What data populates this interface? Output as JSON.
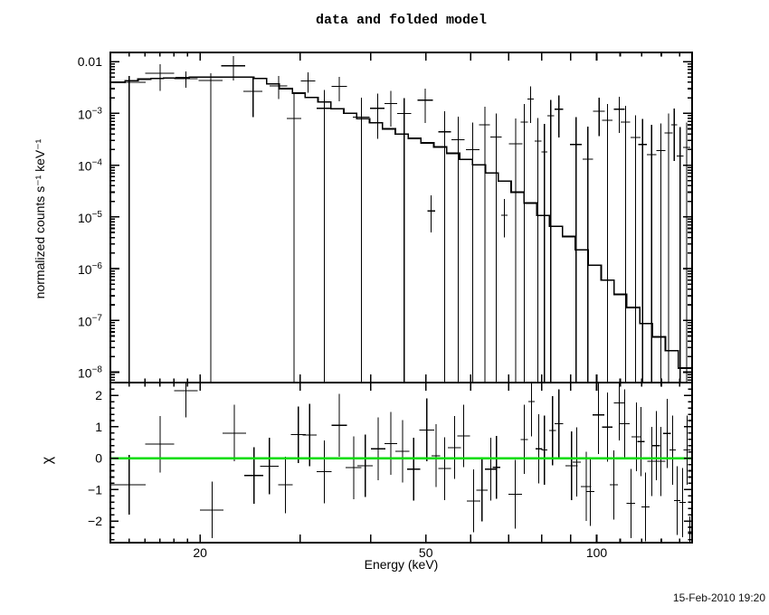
{
  "title": "data and folded model",
  "timestamp": "15-Feb-2010 19:20",
  "chart_data": {
    "type": "scatter",
    "title": "data and folded model",
    "grid": false,
    "legend": false,
    "x_axis": {
      "label": "Energy (keV)",
      "scale": "log",
      "range_kev": [
        13.9,
        147.3
      ],
      "major_ticks": [
        20,
        30,
        40,
        50,
        60,
        70,
        80,
        90,
        100
      ],
      "minor_ticks": [
        15,
        16,
        17,
        18,
        19,
        110,
        120,
        130,
        140
      ],
      "tick_labels": [
        {
          "value": 20,
          "label": "20"
        },
        {
          "value": 50,
          "label": "50"
        },
        {
          "value": 100,
          "label": "100"
        }
      ]
    },
    "panels": [
      {
        "name": "spectrum",
        "ylabel": "normalized counts s⁻¹ keV⁻¹",
        "yscale": "log",
        "ylim": [
          6.3e-09,
          0.015
        ],
        "tick_labels": [
          {
            "v": 0.01,
            "label": "0.01"
          },
          {
            "v": 0.001,
            "base": "10",
            "exp": "−3"
          },
          {
            "v": 0.0001,
            "base": "10",
            "exp": "−4"
          },
          {
            "v": 1e-05,
            "base": "10",
            "exp": "−5"
          },
          {
            "v": 1e-06,
            "base": "10",
            "exp": "−6"
          },
          {
            "v": 1e-07,
            "base": "10",
            "exp": "−7"
          },
          {
            "v": 1e-08,
            "base": "10",
            "exp": "−8"
          }
        ],
        "model_step": {
          "edges_kev": [
            13.9,
            14.75,
            15.54,
            16.37,
            17.25,
            18.17,
            19.15,
            20.17,
            21.26,
            22.4,
            23.6,
            24.86,
            26.2,
            27.6,
            29.08,
            30.64,
            32.28,
            34.01,
            35.84,
            37.76,
            39.78,
            41.92,
            44.16,
            46.53,
            49.02,
            51.65,
            54.42,
            57.34,
            60.41,
            63.65,
            67.06,
            70.65,
            74.44,
            78.43,
            82.63,
            87.06,
            91.72,
            96.64,
            101.82,
            107.27,
            113.02,
            119.08,
            125.46,
            132.18,
            139.26,
            147.3
          ],
          "values": [
            0.004,
            0.0043,
            0.0046,
            0.0047,
            0.0048,
            0.0049,
            0.005,
            0.005,
            0.005,
            0.005,
            0.005,
            0.0047,
            0.0037,
            0.003,
            0.00245,
            0.00204,
            0.00166,
            0.00123,
            0.001,
            0.00079,
            0.00066,
            0.0005,
            0.0004,
            0.00033,
            0.00027,
            0.000224,
            0.00017,
            0.000129,
            0.000102,
            7.1e-05,
            4.9e-05,
            3e-05,
            1.86e-05,
            1.07e-05,
            6.6e-06,
            4.2e-06,
            2.3e-06,
            1.17e-06,
            6e-07,
            3.2e-07,
            1.78e-07,
            8.7e-08,
            4.8e-08,
            2.6e-08,
            1.2e-08
          ]
        },
        "points": [
          {
            "e": 15.0,
            "w": 1.05,
            "y": 0.004,
            "hi": 0.0053,
            "lo": 0
          },
          {
            "e": 17.0,
            "w": 1.0,
            "y": 0.0059,
            "hi": 0.0089,
            "lo": 0.0027
          },
          {
            "e": 18.9,
            "w": 0.9,
            "y": 0.0047,
            "hi": 0.0065,
            "lo": 0.0031
          },
          {
            "e": 20.9,
            "w": 1.0,
            "y": 0.0043,
            "hi": 0.006,
            "lo": 0
          },
          {
            "e": 22.9,
            "w": 1.1,
            "y": 0.0083,
            "hi": 0.0128,
            "lo": 0.0043
          },
          {
            "e": 24.8,
            "w": 0.95,
            "y": 0.00265,
            "hi": 0.005,
            "lo": 0.00085
          },
          {
            "e": 27.5,
            "w": 1.0,
            "y": 0.0034,
            "hi": 0.0053,
            "lo": 0.0019
          },
          {
            "e": 29.3,
            "w": 0.85,
            "y": 0.0008,
            "hi": 0.0024,
            "lo": 0
          },
          {
            "e": 31.0,
            "w": 0.9,
            "y": 0.0042,
            "hi": 0.0062,
            "lo": 0.0025
          },
          {
            "e": 33.1,
            "w": 1.0,
            "y": 0.00125,
            "hi": 0.0028,
            "lo": 0
          },
          {
            "e": 35.2,
            "w": 1.1,
            "y": 0.0033,
            "hi": 0.0051,
            "lo": 0.0017
          },
          {
            "e": 38.5,
            "w": 1.3,
            "y": 0.00084,
            "hi": 0.002,
            "lo": 0
          },
          {
            "e": 41.1,
            "w": 1.2,
            "y": 0.00125,
            "hi": 0.0024,
            "lo": 0.00032
          },
          {
            "e": 43.4,
            "w": 1.1,
            "y": 0.00155,
            "hi": 0.0027,
            "lo": 0.00055
          },
          {
            "e": 45.8,
            "w": 1.3,
            "y": 0.00099,
            "hi": 0.00195,
            "lo": 0
          },
          {
            "e": 49.9,
            "w": 1.6,
            "y": 0.0018,
            "hi": 0.003,
            "lo": 0.00065
          },
          {
            "e": 51.1,
            "w": 0.8,
            "y": 1.3e-05,
            "hi": 2.6e-05,
            "lo": 5e-06
          },
          {
            "e": 54.0,
            "w": 1.4,
            "y": 0.00044,
            "hi": 0.0011,
            "lo": 0
          },
          {
            "e": 57.0,
            "w": 1.5,
            "y": 0.00031,
            "hi": 0.00086,
            "lo": 0
          },
          {
            "e": 60.5,
            "w": 1.7,
            "y": 0.0002,
            "hi": 0.00066,
            "lo": 0
          },
          {
            "e": 63.5,
            "w": 1.4,
            "y": 0.0006,
            "hi": 0.00135,
            "lo": 0
          },
          {
            "e": 66.5,
            "w": 1.5,
            "y": 0.00035,
            "hi": 0.001,
            "lo": 0
          },
          {
            "e": 68.8,
            "w": 0.9,
            "y": 1.08e-05,
            "hi": 2.2e-05,
            "lo": 4e-06
          },
          {
            "e": 72.0,
            "w": 2.0,
            "y": 0.00026,
            "hi": 0.0008,
            "lo": 0
          },
          {
            "e": 74.6,
            "w": 1.1,
            "y": 0.00068,
            "hi": 0.0015,
            "lo": 0
          },
          {
            "e": 76.5,
            "w": 1.0,
            "y": 0.0019,
            "hi": 0.0033,
            "lo": 0.00065
          },
          {
            "e": 78.8,
            "w": 1.1,
            "y": 0.00029,
            "hi": 0.00082,
            "lo": 0
          },
          {
            "e": 80.9,
            "w": 1.0,
            "y": 0.00018,
            "hi": 0.00062,
            "lo": 0
          },
          {
            "e": 83.0,
            "w": 1.1,
            "y": 0.0009,
            "hi": 0.0018,
            "lo": 0
          },
          {
            "e": 85.8,
            "w": 1.5,
            "y": 0.0012,
            "hi": 0.0022,
            "lo": 0.00034
          },
          {
            "e": 92.0,
            "w": 2.2,
            "y": 0.00025,
            "hi": 0.00085,
            "lo": 0
          },
          {
            "e": 96.5,
            "w": 2.0,
            "y": 0.00013,
            "hi": 0.00055,
            "lo": 0
          },
          {
            "e": 101.0,
            "w": 2.4,
            "y": 0.0011,
            "hi": 0.002,
            "lo": 0.00036
          },
          {
            "e": 104.5,
            "w": 2.2,
            "y": 0.00074,
            "hi": 0.0015,
            "lo": 0
          },
          {
            "e": 109.6,
            "w": 2.4,
            "y": 0.0012,
            "hi": 0.0021,
            "lo": 0.00042
          },
          {
            "e": 112.4,
            "w": 2.2,
            "y": 0.00068,
            "hi": 0.0014,
            "lo": 0
          },
          {
            "e": 117.1,
            "w": 2.3,
            "y": 0.00034,
            "hi": 0.00092,
            "lo": 0
          },
          {
            "e": 120.5,
            "w": 2.2,
            "y": 0.00025,
            "hi": 0.00078,
            "lo": 0
          },
          {
            "e": 125.0,
            "w": 2.3,
            "y": 0.00016,
            "hi": 0.0006,
            "lo": 0
          },
          {
            "e": 129.8,
            "w": 2.3,
            "y": 0.00019,
            "hi": 0.00064,
            "lo": 0
          },
          {
            "e": 133.9,
            "w": 2.1,
            "y": 0.00042,
            "hi": 0.001,
            "lo": 0
          },
          {
            "e": 137.0,
            "w": 1.7,
            "y": 0.0006,
            "hi": 0.00125,
            "lo": 0.00012
          },
          {
            "e": 140.3,
            "w": 1.9,
            "y": 0.00015,
            "hi": 0.00054,
            "lo": 0
          },
          {
            "e": 144.0,
            "w": 2.1,
            "y": 0.00022,
            "hi": 0.00066,
            "lo": 0
          }
        ]
      },
      {
        "name": "residuals",
        "ylabel": "χ",
        "yscale": "linear",
        "ylim": [
          -2.69,
          2.41
        ],
        "zero_line_color": "#00dd00",
        "tick_labels": [
          {
            "v": 2,
            "label": "2"
          },
          {
            "v": 1,
            "label": "1"
          },
          {
            "v": 0,
            "label": "0"
          },
          {
            "v": -1,
            "label": "−1"
          },
          {
            "v": -2,
            "label": "−2"
          }
        ],
        "points": [
          {
            "e": 15.0,
            "w": 1.05,
            "chi": -0.85,
            "err": 0.95
          },
          {
            "e": 17.0,
            "w": 1.0,
            "chi": 0.45,
            "err": 0.9
          },
          {
            "e": 18.9,
            "w": 0.9,
            "chi": 2.15,
            "err": 0.85
          },
          {
            "e": 21.0,
            "w": 1.0,
            "chi": -1.65,
            "err": 0.9
          },
          {
            "e": 23.0,
            "w": 1.1,
            "chi": 0.8,
            "err": 0.9
          },
          {
            "e": 24.9,
            "w": 0.95,
            "chi": -0.55,
            "err": 0.9
          },
          {
            "e": 26.5,
            "w": 1.0,
            "chi": -0.25,
            "err": 0.9
          },
          {
            "e": 28.3,
            "w": 0.85,
            "chi": -0.85,
            "err": 0.9
          },
          {
            "e": 29.8,
            "w": 0.9,
            "chi": 0.75,
            "err": 0.9
          },
          {
            "e": 31.2,
            "w": 0.9,
            "chi": 0.74,
            "err": 1.0
          },
          {
            "e": 33.1,
            "w": 1.0,
            "chi": -0.43,
            "err": 1.0
          },
          {
            "e": 35.2,
            "w": 1.1,
            "chi": 1.05,
            "err": 1.0
          },
          {
            "e": 37.3,
            "w": 1.2,
            "chi": -0.3,
            "err": 1.0
          },
          {
            "e": 39.1,
            "w": 1.2,
            "chi": -0.24,
            "err": 1.0
          },
          {
            "e": 41.2,
            "w": 1.2,
            "chi": 0.3,
            "err": 1.0
          },
          {
            "e": 43.4,
            "w": 1.1,
            "chi": 0.47,
            "err": 1.0
          },
          {
            "e": 45.5,
            "w": 1.3,
            "chi": 0.22,
            "err": 1.0
          },
          {
            "e": 47.6,
            "w": 1.3,
            "chi": -0.35,
            "err": 1.0
          },
          {
            "e": 50.2,
            "w": 1.5,
            "chi": 0.9,
            "err": 1.0
          },
          {
            "e": 52.1,
            "w": 0.9,
            "chi": 0.08,
            "err": 1.0
          },
          {
            "e": 54.0,
            "w": 1.4,
            "chi": -0.33,
            "err": 1.0
          },
          {
            "e": 56.2,
            "w": 1.5,
            "chi": 0.34,
            "err": 1.0
          },
          {
            "e": 58.3,
            "w": 1.5,
            "chi": 0.71,
            "err": 1.0
          },
          {
            "e": 60.7,
            "w": 1.7,
            "chi": -1.36,
            "err": 1.0
          },
          {
            "e": 62.8,
            "w": 1.4,
            "chi": -1.02,
            "err": 1.0
          },
          {
            "e": 65.1,
            "w": 1.5,
            "chi": -0.35,
            "err": 1.0
          },
          {
            "e": 66.6,
            "w": 1.0,
            "chi": -0.29,
            "err": 1.0
          },
          {
            "e": 71.9,
            "w": 2.0,
            "chi": -1.15,
            "err": 1.1
          },
          {
            "e": 74.6,
            "w": 1.1,
            "chi": 0.6,
            "err": 1.1
          },
          {
            "e": 76.8,
            "w": 1.0,
            "chi": 1.8,
            "err": 1.1
          },
          {
            "e": 79.1,
            "w": 1.1,
            "chi": 0.3,
            "err": 1.1
          },
          {
            "e": 80.9,
            "w": 1.0,
            "chi": 0.26,
            "err": 1.1
          },
          {
            "e": 83.6,
            "w": 1.1,
            "chi": 0.88,
            "err": 1.1
          },
          {
            "e": 85.8,
            "w": 1.5,
            "chi": 1.1,
            "err": 1.1
          },
          {
            "e": 90.3,
            "w": 2.2,
            "chi": -0.24,
            "err": 1.1
          },
          {
            "e": 92.3,
            "w": 1.5,
            "chi": -0.12,
            "err": 1.1
          },
          {
            "e": 95.8,
            "w": 2.0,
            "chi": -0.9,
            "err": 1.1
          },
          {
            "e": 97.5,
            "w": 1.5,
            "chi": -1.06,
            "err": 1.1
          },
          {
            "e": 100.7,
            "w": 2.4,
            "chi": 1.38,
            "err": 1.25
          },
          {
            "e": 104.5,
            "w": 2.2,
            "chi": 0.99,
            "err": 1.1
          },
          {
            "e": 107.2,
            "w": 1.8,
            "chi": -0.85,
            "err": 1.1
          },
          {
            "e": 109.6,
            "w": 2.4,
            "chi": 1.76,
            "err": 1.2
          },
          {
            "e": 112.1,
            "w": 2.2,
            "chi": 1.1,
            "err": 1.1
          },
          {
            "e": 114.9,
            "w": 2.0,
            "chi": -1.44,
            "err": 1.1
          },
          {
            "e": 117.5,
            "w": 2.3,
            "chi": 0.68,
            "err": 1.1
          },
          {
            "e": 119.7,
            "w": 1.8,
            "chi": 0.53,
            "err": 1.1
          },
          {
            "e": 121.9,
            "w": 2.0,
            "chi": -1.55,
            "err": 1.1
          },
          {
            "e": 125.1,
            "w": 2.3,
            "chi": -0.1,
            "err": 1.1
          },
          {
            "e": 127.4,
            "w": 2.0,
            "chi": 0.4,
            "err": 1.1
          },
          {
            "e": 129.8,
            "w": 2.3,
            "chi": -0.1,
            "err": 1.1
          },
          {
            "e": 133.1,
            "w": 2.1,
            "chi": 0.79,
            "err": 1.1
          },
          {
            "e": 136.1,
            "w": 1.7,
            "chi": 0.26,
            "err": 1.1
          },
          {
            "e": 138.6,
            "w": 1.8,
            "chi": -1.35,
            "err": 1.1
          },
          {
            "e": 141.7,
            "w": 1.9,
            "chi": -1.41,
            "err": 1.1
          },
          {
            "e": 144.3,
            "w": 2.1,
            "chi": 0.26,
            "err": 1.1
          },
          {
            "e": 146.0,
            "w": 1.2,
            "chi": -2.35,
            "err": 0.5
          }
        ]
      }
    ]
  }
}
